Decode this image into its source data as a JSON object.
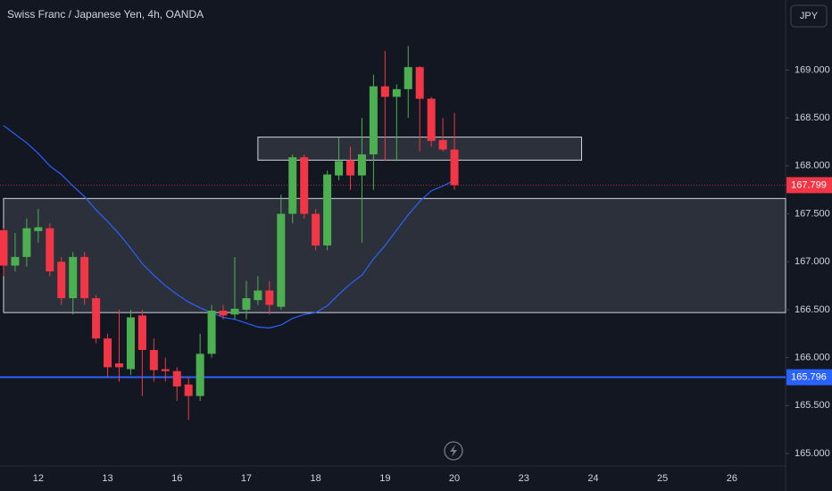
{
  "chart_data": {
    "type": "candlestick",
    "title": "Swiss Franc / Japanese Yen, 4h, OANDA",
    "currency_button": "JPY",
    "categories": [
      null,
      null,
      null,
      "12",
      null,
      null,
      null,
      null,
      null,
      "13",
      null,
      null,
      null,
      null,
      null,
      "16",
      null,
      null,
      null,
      null,
      null,
      "17",
      null,
      null,
      null,
      null,
      null,
      "18",
      null,
      null,
      null,
      null,
      null,
      "19",
      null,
      null,
      null,
      null,
      null,
      "20",
      null,
      null,
      null,
      null,
      null,
      "23",
      null,
      null,
      null,
      null,
      null,
      "24",
      null,
      null,
      null,
      null,
      null,
      "25",
      null,
      null,
      null,
      null,
      null,
      "26"
    ],
    "open": [
      167.33,
      166.96,
      167.05,
      167.32,
      167.35,
      167.0,
      166.62,
      167.05,
      166.62,
      166.2,
      165.94,
      165.88,
      166.44,
      166.08,
      165.88,
      165.86,
      165.72,
      165.6,
      166.04,
      166.49,
      166.45,
      166.5,
      166.6,
      166.7,
      166.53,
      167.5,
      168.09,
      167.5,
      167.17,
      167.9,
      168.06,
      167.9,
      168.12,
      168.83,
      168.72,
      168.8,
      169.03,
      168.7,
      168.27,
      168.17,
      null,
      null,
      null,
      null,
      null,
      null,
      null,
      null,
      null,
      null,
      null,
      null,
      null,
      null,
      null,
      null,
      null,
      null,
      null,
      null,
      null,
      null,
      null,
      null
    ],
    "high": [
      167.35,
      167.3,
      167.45,
      167.55,
      167.4,
      167.05,
      167.1,
      167.1,
      166.65,
      166.25,
      166.5,
      166.5,
      166.5,
      166.2,
      166.0,
      165.9,
      165.8,
      166.25,
      166.55,
      166.55,
      167.05,
      166.8,
      166.85,
      166.8,
      167.7,
      168.12,
      168.12,
      167.55,
      167.95,
      168.3,
      168.2,
      168.5,
      168.95,
      169.2,
      168.85,
      169.25,
      169.04,
      168.72,
      168.5,
      168.55,
      null,
      null,
      null,
      null,
      null,
      null,
      null,
      null,
      null,
      null,
      null,
      null,
      null,
      null,
      null,
      null,
      null,
      null,
      null,
      null,
      null,
      null,
      null,
      null
    ],
    "low": [
      166.85,
      166.9,
      166.95,
      167.2,
      166.85,
      166.55,
      166.45,
      166.55,
      166.15,
      165.8,
      165.75,
      165.82,
      165.6,
      165.75,
      165.75,
      165.55,
      165.35,
      165.55,
      166.0,
      166.4,
      166.4,
      166.4,
      166.55,
      166.45,
      166.5,
      167.4,
      167.45,
      167.12,
      167.12,
      167.85,
      167.75,
      167.2,
      167.75,
      168.05,
      168.05,
      168.5,
      168.15,
      168.2,
      168.15,
      167.75,
      null,
      null,
      null,
      null,
      null,
      null,
      null,
      null,
      null,
      null,
      null,
      null,
      null,
      null,
      null,
      null,
      null,
      null,
      null,
      null,
      null,
      null,
      null,
      null
    ],
    "close": [
      166.96,
      167.05,
      167.35,
      167.36,
      166.9,
      166.62,
      167.05,
      166.62,
      166.2,
      165.9,
      165.9,
      166.42,
      166.08,
      165.87,
      165.86,
      165.7,
      165.6,
      166.04,
      166.49,
      166.44,
      166.51,
      166.62,
      166.7,
      166.55,
      167.5,
      168.09,
      167.5,
      167.17,
      167.91,
      168.05,
      167.9,
      168.12,
      168.83,
      168.72,
      168.8,
      169.03,
      168.7,
      168.26,
      168.17,
      167.799,
      null,
      null,
      null,
      null,
      null,
      null,
      null,
      null,
      null,
      null,
      null,
      null,
      null,
      null,
      null,
      null,
      null,
      null,
      null,
      null,
      null,
      null,
      null,
      null
    ],
    "moving_average": {
      "color": "#2962ff",
      "values": [
        168.42,
        168.33,
        168.24,
        168.13,
        168.0,
        167.91,
        167.79,
        167.68,
        167.54,
        167.42,
        167.29,
        167.14,
        166.98,
        166.86,
        166.75,
        166.66,
        166.58,
        166.52,
        166.47,
        166.42,
        166.4,
        166.36,
        166.32,
        166.31,
        166.34,
        166.41,
        166.45,
        166.47,
        166.54,
        166.66,
        166.77,
        166.86,
        167.03,
        167.17,
        167.33,
        167.49,
        167.63,
        167.74,
        167.79,
        167.85,
        null,
        null,
        null,
        null,
        null,
        null,
        null,
        null,
        null,
        null,
        null,
        null,
        null,
        null,
        null,
        null,
        null,
        null,
        null,
        null,
        null,
        null,
        null,
        null
      ]
    },
    "up_color": "#4caf50",
    "down_color": "#f23645",
    "ylim": [
      164.87,
      169.73
    ],
    "yticks": [
      {
        "value": 165,
        "label": "165.000"
      },
      {
        "value": 165.5,
        "label": "165.500"
      },
      {
        "value": 166,
        "label": "166.000"
      },
      {
        "value": 166.5,
        "label": "166.500"
      },
      {
        "value": 167,
        "label": "167.000"
      },
      {
        "value": 167.5,
        "label": "167.500"
      },
      {
        "value": 168,
        "label": "168.000"
      },
      {
        "value": 168.5,
        "label": "168.500"
      },
      {
        "value": 169,
        "label": "169.000"
      }
    ],
    "zones": [
      {
        "start": 22,
        "end": 50,
        "top": 168.3,
        "bottom": 168.06
      },
      {
        "start": 0,
        "end": 68,
        "top": 167.66,
        "bottom": 166.47
      }
    ],
    "last_price": {
      "value": 167.799,
      "label": "167.799",
      "color": "#f23645"
    },
    "level": {
      "value": 165.796,
      "label": "165.796",
      "color": "#2962ff"
    }
  }
}
